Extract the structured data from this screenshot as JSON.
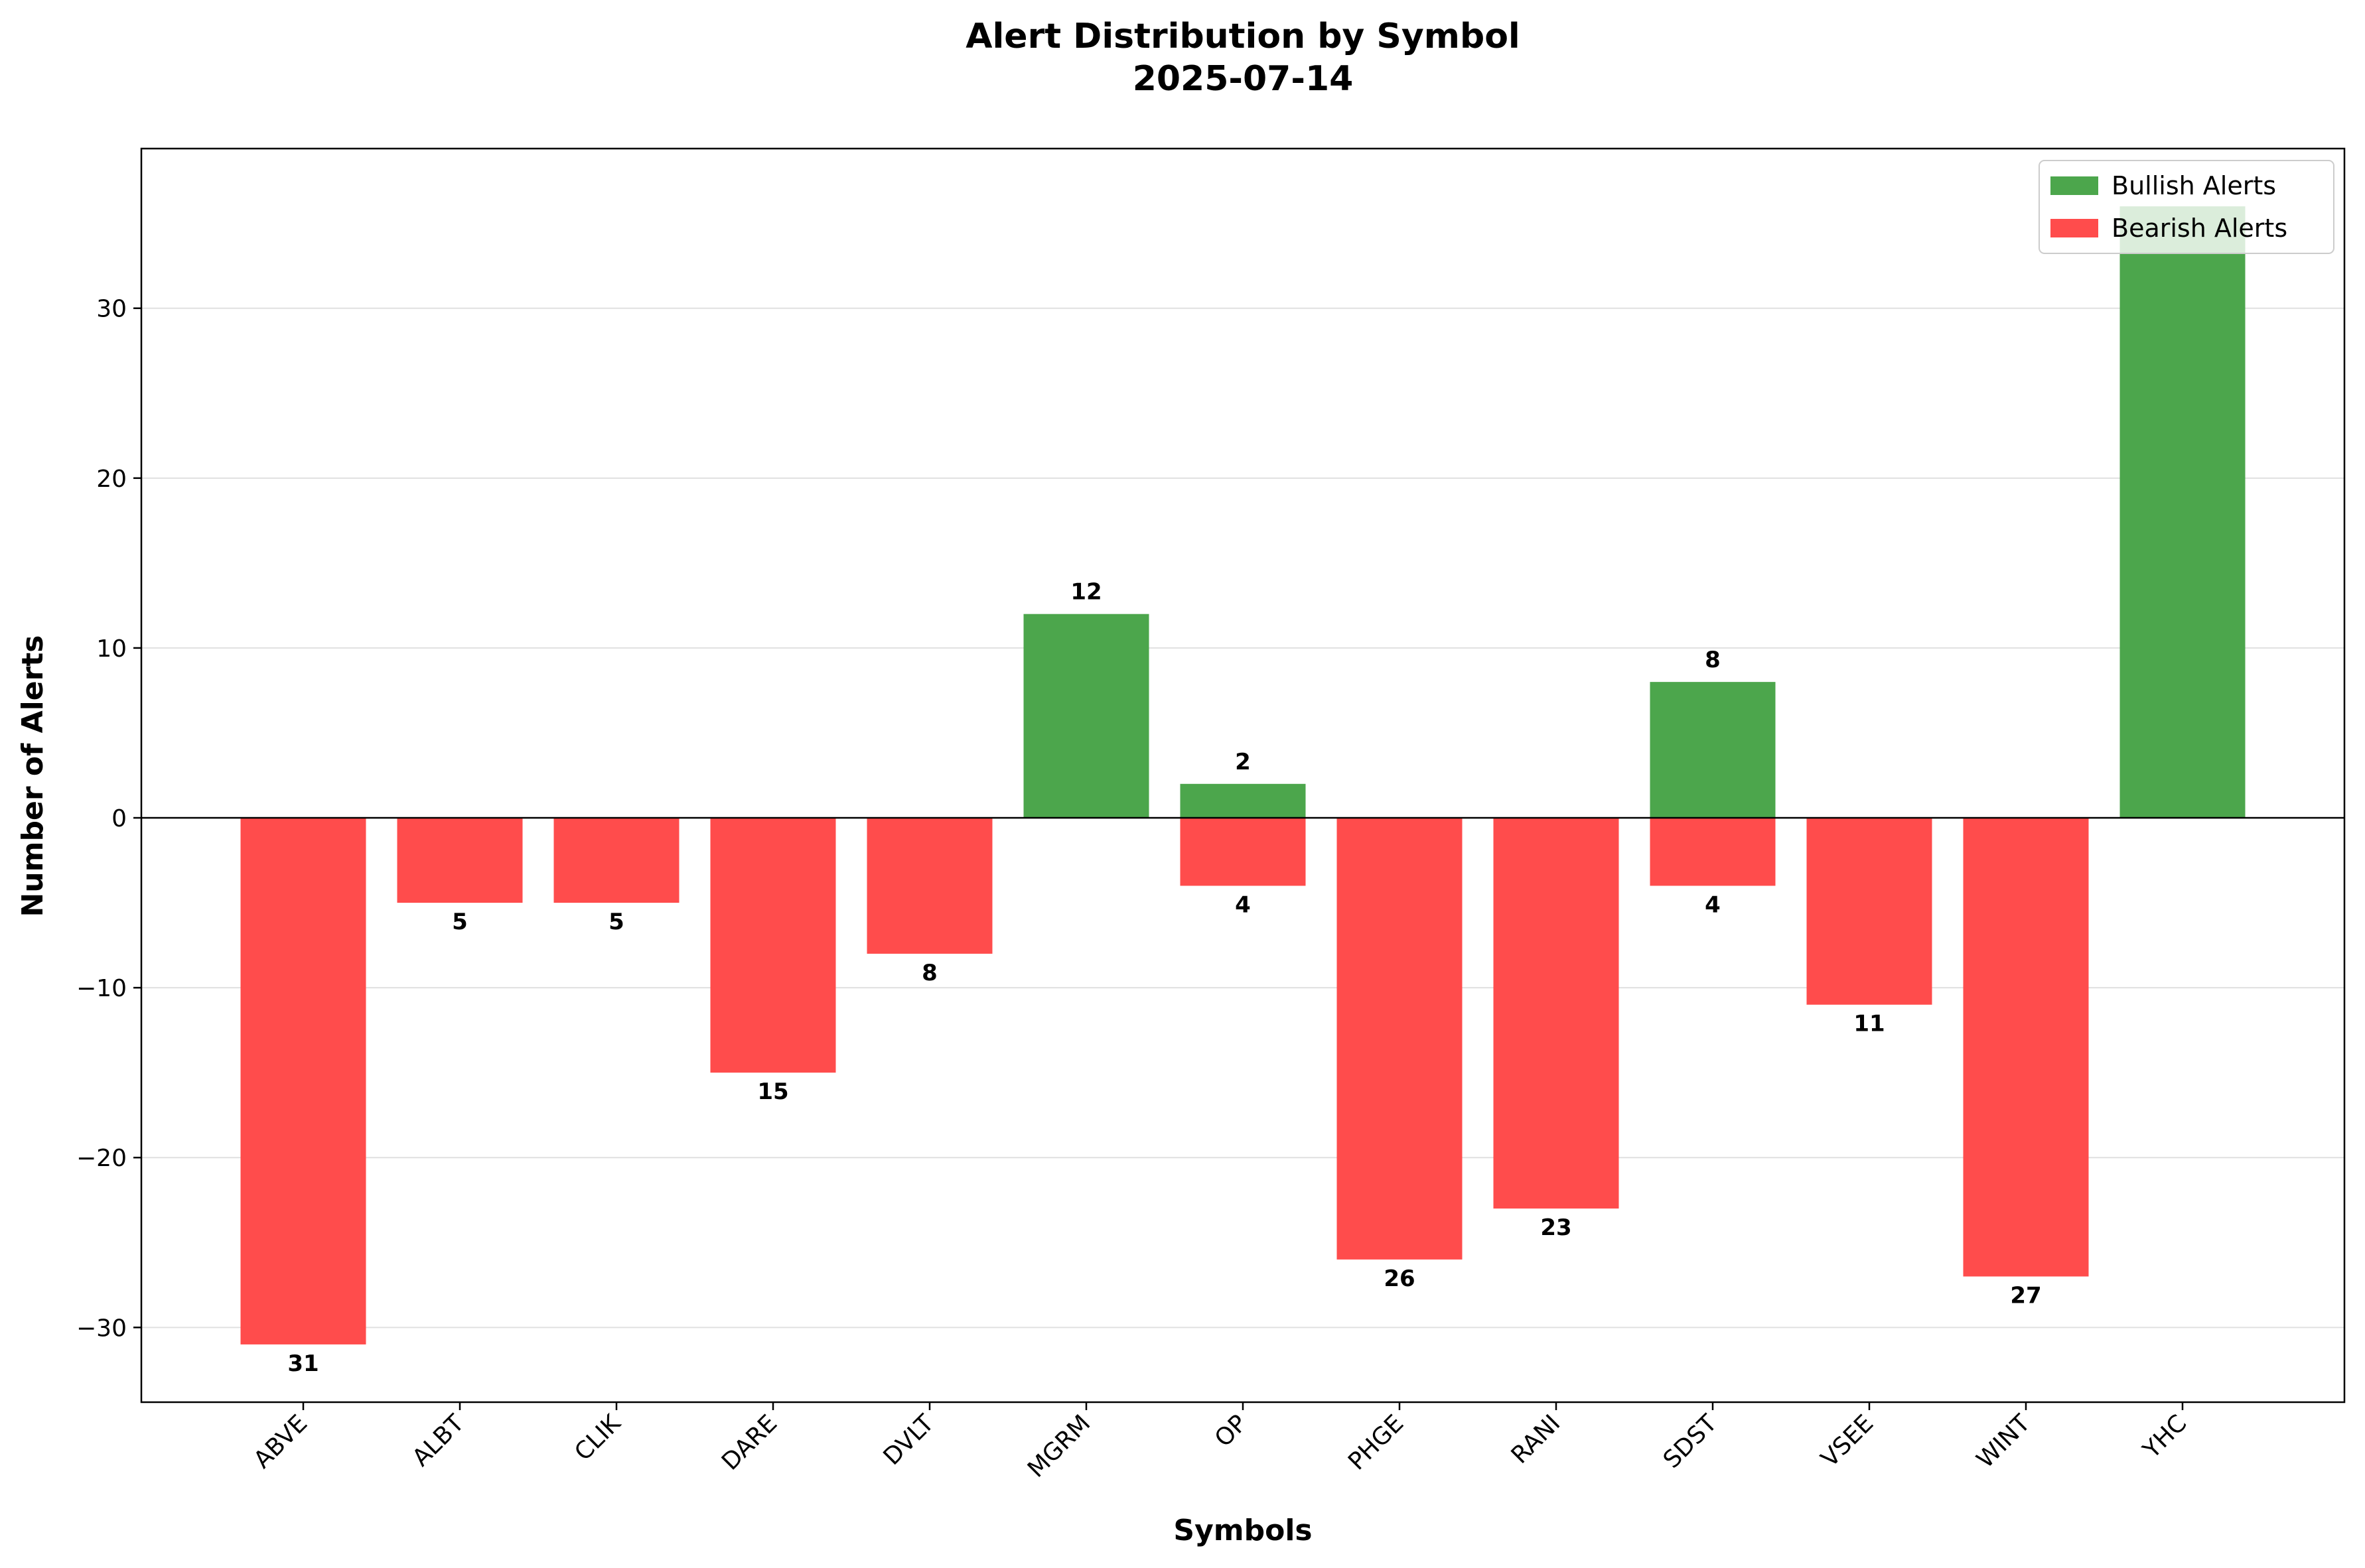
{
  "chart_data": {
    "type": "bar",
    "title": "Alert Distribution by Symbol",
    "subtitle": "2025-07-14",
    "xlabel": "Symbols",
    "ylabel": "Number of Alerts",
    "categories": [
      "ABVE",
      "ALBT",
      "CLIK",
      "DARE",
      "DVLT",
      "MGRM",
      "OP",
      "PHGE",
      "RANI",
      "SDST",
      "VSEE",
      "WINT",
      "YHC"
    ],
    "series": [
      {
        "name": "Bullish Alerts",
        "color": "#4ca64c",
        "values": [
          0,
          0,
          0,
          0,
          0,
          12,
          2,
          0,
          0,
          8,
          0,
          0,
          36
        ]
      },
      {
        "name": "Bearish Alerts",
        "color": "#ff4c4c",
        "values": [
          -31,
          -5,
          -5,
          -15,
          -8,
          0,
          -4,
          -26,
          -23,
          -4,
          -11,
          -27,
          0
        ]
      }
    ],
    "data_labels": {
      "bullish": [
        "",
        "",
        "",
        "",
        "",
        "12",
        "2",
        "",
        "",
        "8",
        "",
        "",
        ""
      ],
      "bearish": [
        "31",
        "5",
        "5",
        "15",
        "8",
        "",
        "4",
        "26",
        "23",
        "4",
        "11",
        "27",
        ""
      ]
    },
    "yticks": [
      -30,
      -20,
      -10,
      0,
      10,
      20,
      30
    ],
    "ytick_labels": [
      "−30",
      "−20",
      "−10",
      "0",
      "10",
      "20",
      "30"
    ],
    "ylim": [
      -34.4,
      39.4
    ],
    "grid": "horizontal",
    "legend_position": "top-right"
  }
}
